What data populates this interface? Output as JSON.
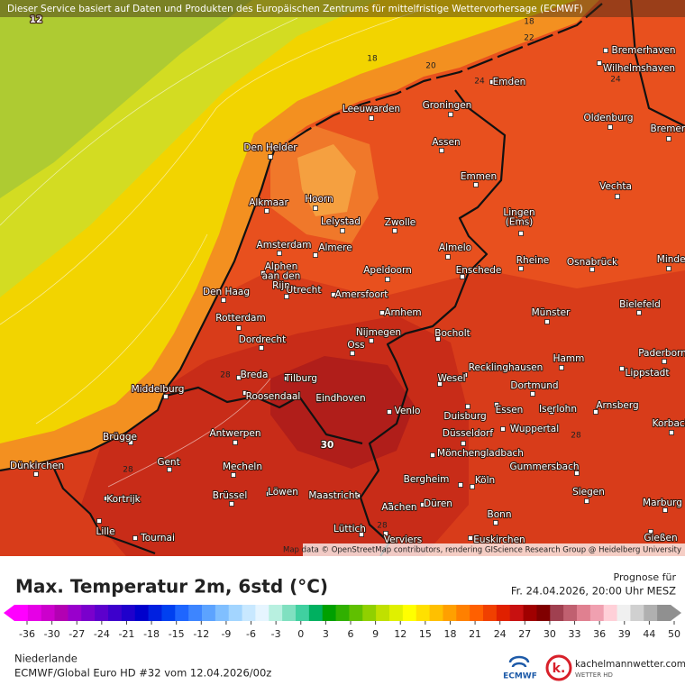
{
  "header": {
    "notice": "Dieser Service basiert auf Daten und Produkten des Europäischen Zentrums für mittelfristige Wettervorhersage (ECMWF)"
  },
  "map": {
    "contour_labels": [
      12,
      18,
      22,
      18,
      20,
      24,
      24,
      28,
      28,
      28,
      28,
      30
    ],
    "cities": [
      [
        "Bremerhaven"
      ],
      [
        "Wilhelmshaven"
      ],
      [
        "Emden"
      ],
      [
        "Leeuwarden"
      ],
      [
        "Groningen"
      ],
      [
        "Oldenburg"
      ],
      [
        "Bremen"
      ],
      [
        "Assen"
      ],
      [
        "Den Helder"
      ],
      [
        "Emmen"
      ],
      [
        "Vechta"
      ],
      [
        "Alkmaar"
      ],
      [
        "Hoorn"
      ],
      [
        "Lingen",
        "(Ems)"
      ],
      [
        "Lelystad"
      ],
      [
        "Zwolle"
      ],
      [
        "Amsterdam"
      ],
      [
        "Almere"
      ],
      [
        "Almelo"
      ],
      [
        "Rheine"
      ],
      [
        "Osnabrück"
      ],
      [
        "Minden"
      ],
      [
        "Alphen",
        "aan den",
        "Rijn"
      ],
      [
        "Apeldoorn"
      ],
      [
        "Enschede"
      ],
      [
        "Den Haag"
      ],
      [
        "Utrecht"
      ],
      [
        "Amersfoort"
      ],
      [
        "Bielefeld"
      ],
      [
        "Arnhem"
      ],
      [
        "Münster"
      ],
      [
        "Rotterdam"
      ],
      [
        "Nijmegen"
      ],
      [
        "Bocholt"
      ],
      [
        "Dordrecht"
      ],
      [
        "Oss"
      ],
      [
        "Paderborn"
      ],
      [
        "Hamm"
      ],
      [
        "Breda"
      ],
      [
        "Tilburg"
      ],
      [
        "Recklinghausen"
      ],
      [
        "Wesel"
      ],
      [
        "Lippstadt"
      ],
      [
        "Middelburg"
      ],
      [
        "Roosendaal"
      ],
      [
        "Eindhoven"
      ],
      [
        "Dortmund"
      ],
      [
        "Iserlohn"
      ],
      [
        "Venlo"
      ],
      [
        "Essen"
      ],
      [
        "Arnsberg"
      ],
      [
        "Duisburg"
      ],
      [
        "Korbach"
      ],
      [
        "Wuppertal"
      ],
      [
        "Düsseldorf"
      ],
      [
        "Antwerpen"
      ],
      [
        "Brügge"
      ],
      [
        "Mönchengladbach"
      ],
      [
        "Gent"
      ],
      [
        "Mecheln"
      ],
      [
        "Dünkirchen"
      ],
      [
        "Gummersbach"
      ],
      [
        "Bergheim"
      ],
      [
        "Köln"
      ],
      [
        "Kortrijk"
      ],
      [
        "Brüssel"
      ],
      [
        "Löwen"
      ],
      [
        "Maastricht"
      ],
      [
        "Siegen"
      ],
      [
        "Marburg"
      ],
      [
        "Aachen"
      ],
      [
        "Düren"
      ],
      [
        "Bonn"
      ],
      [
        "Lille"
      ],
      [
        "Tournai"
      ],
      [
        "Lüttich"
      ],
      [
        "Verviers"
      ],
      [
        "Euskirchen"
      ],
      [
        "Gießen"
      ]
    ],
    "attribution": "Map data © OpenStreetMap contributors, rendering GIScience Research Group @ Heidelberg University"
  },
  "legend": {
    "title": "Max. Temperatur 2m, 6std (°C)",
    "colorbar": {
      "ticks": [
        -36,
        -30,
        -27,
        -24,
        -21,
        -18,
        -15,
        -12,
        -9,
        -6,
        -3,
        0,
        3,
        6,
        9,
        12,
        15,
        18,
        21,
        24,
        27,
        30,
        33,
        36,
        39,
        44,
        50
      ],
      "colors": [
        "#ff00ff",
        "#e600e6",
        "#cc00cc",
        "#b300b3",
        "#9900cc",
        "#7a00cc",
        "#5c00cc",
        "#3d00cc",
        "#1f00cc",
        "#0000cc",
        "#0020e0",
        "#0040f0",
        "#1e66ff",
        "#3d85ff",
        "#5ca3ff",
        "#80bfff",
        "#a3d5ff",
        "#c8e8ff",
        "#e6f5ff",
        "#b8f0e0",
        "#80e0c0",
        "#40d0a0",
        "#00b060",
        "#00a000",
        "#30b000",
        "#60c000",
        "#90d000",
        "#c0e000",
        "#e0f000",
        "#ffff00",
        "#ffe000",
        "#ffc000",
        "#ffa000",
        "#ff8000",
        "#ff6000",
        "#f04000",
        "#e02000",
        "#c81010",
        "#a00000",
        "#800000",
        "#a04050",
        "#c06070",
        "#e08090",
        "#f0a0b0",
        "#ffd0d8",
        "#f0f0f0",
        "#d0d0d0",
        "#b0b0b0",
        "#909090"
      ]
    }
  },
  "forecast": {
    "label": "Prognose für",
    "time": "Fr. 24.04.2026, 20:00 Uhr MESZ"
  },
  "footer": {
    "region": "Niederlande",
    "model": "ECMWF/Global Euro HD #32 vom  12.04.2026/00z",
    "ecmwf": "ECMWF",
    "logo": "k.",
    "site": "kachelmannwetter.com",
    "site_sub": "WETTER HD"
  }
}
